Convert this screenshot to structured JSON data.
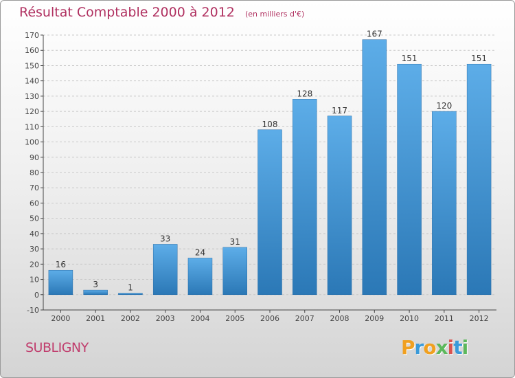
{
  "colors": {
    "title": "#b03060",
    "bar_top": "#5dade8",
    "bar_bottom": "#2b78b6",
    "axis": "#444444",
    "grid": "#c8c8c8"
  },
  "place": "SUBLIGNY",
  "brand": {
    "letters": [
      "P",
      "r",
      "o",
      "x",
      "i",
      "t",
      "i"
    ],
    "colors": [
      "#f0a020",
      "#3a9ad9",
      "#f0a020",
      "#5cb85c",
      "#d9534f",
      "#3a9ad9",
      "#5cb85c"
    ]
  },
  "chart_data": {
    "type": "bar",
    "title": "Résultat Comptable 2000 à 2012",
    "subtitle": "(en milliers d'€)",
    "categories": [
      "2000",
      "2001",
      "2002",
      "2003",
      "2004",
      "2005",
      "2006",
      "2007",
      "2008",
      "2009",
      "2010",
      "2011",
      "2012"
    ],
    "values": [
      16,
      3,
      1,
      33,
      24,
      31,
      108,
      128,
      117,
      167,
      151,
      120,
      151
    ],
    "ylim": [
      -10,
      170
    ],
    "yticks": [
      -10,
      0,
      10,
      20,
      30,
      40,
      50,
      60,
      70,
      80,
      90,
      100,
      110,
      120,
      130,
      140,
      150,
      160,
      170
    ],
    "xlabel": "",
    "ylabel": "",
    "grid": "horizontal dashed",
    "data_labels": true,
    "legend": "none"
  }
}
